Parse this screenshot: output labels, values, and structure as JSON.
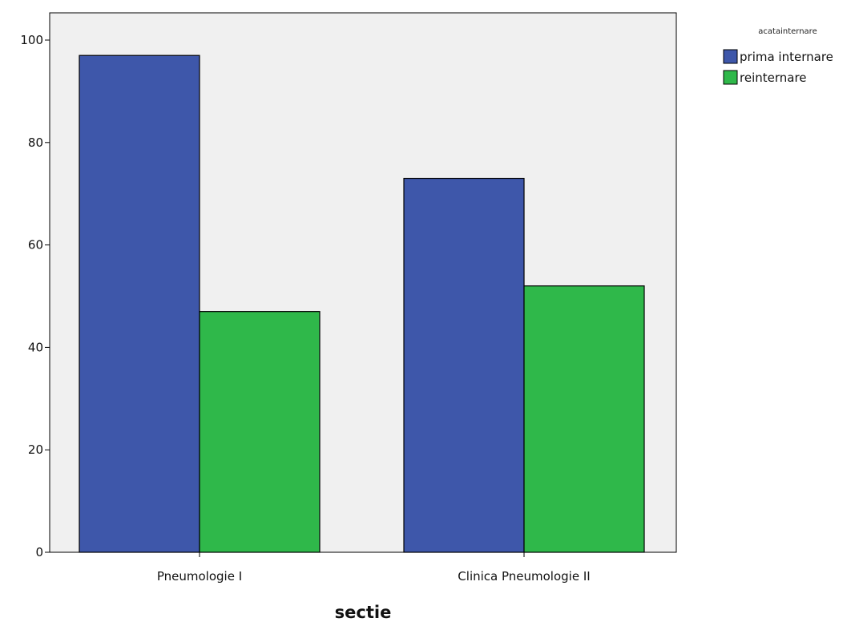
{
  "chart_data": {
    "type": "bar",
    "categories": [
      "Pneumologie I",
      "Clinica Pneumologie II"
    ],
    "series": [
      {
        "name": "prima internare",
        "values": [
          97,
          73
        ],
        "color": "#3e57aa"
      },
      {
        "name": "reinternare",
        "values": [
          47,
          52
        ],
        "color": "#2fb84a"
      }
    ],
    "title": "",
    "xlabel": "sectie",
    "ylabel": "",
    "ylim": [
      0,
      100
    ],
    "yticks": [
      0,
      20,
      40,
      60,
      80,
      100
    ],
    "grid": false,
    "legend": {
      "title": "acatainternare",
      "position": "top-right"
    },
    "plot_background": "#f0f0f0"
  }
}
